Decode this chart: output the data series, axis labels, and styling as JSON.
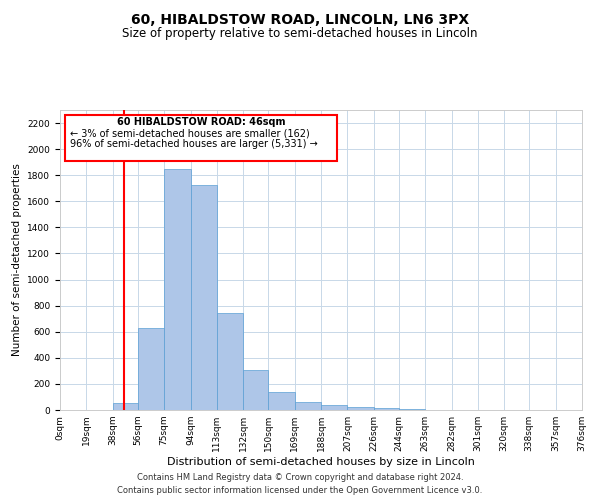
{
  "title": "60, HIBALDSTOW ROAD, LINCOLN, LN6 3PX",
  "subtitle": "Size of property relative to semi-detached houses in Lincoln",
  "xlabel": "Distribution of semi-detached houses by size in Lincoln",
  "ylabel": "Number of semi-detached properties",
  "footer_line1": "Contains HM Land Registry data © Crown copyright and database right 2024.",
  "footer_line2": "Contains public sector information licensed under the Open Government Licence v3.0.",
  "annotation_line1": "60 HIBALDSTOW ROAD: 46sqm",
  "annotation_line2": "← 3% of semi-detached houses are smaller (162)",
  "annotation_line3": "96% of semi-detached houses are larger (5,331) →",
  "property_size": 46,
  "bar_left_edges": [
    0,
    19,
    38,
    56,
    75,
    94,
    113,
    132,
    150,
    169,
    188,
    207,
    226,
    244,
    263,
    282,
    301,
    320,
    338,
    357
  ],
  "bar_widths": [
    19,
    19,
    18,
    19,
    19,
    19,
    19,
    18,
    19,
    19,
    19,
    19,
    18,
    19,
    19,
    19,
    19,
    18,
    19,
    19
  ],
  "bar_heights": [
    0,
    2,
    50,
    625,
    1850,
    1725,
    740,
    305,
    135,
    60,
    35,
    20,
    15,
    5,
    0,
    0,
    0,
    0,
    0,
    0
  ],
  "bar_color": "#aec6e8",
  "bar_edge_color": "#5a9fd4",
  "red_line_x": 46,
  "ylim": [
    0,
    2300
  ],
  "yticks": [
    0,
    200,
    400,
    600,
    800,
    1000,
    1200,
    1400,
    1600,
    1800,
    2000,
    2200
  ],
  "xtick_labels": [
    "0sqm",
    "19sqm",
    "38sqm",
    "56sqm",
    "75sqm",
    "94sqm",
    "113sqm",
    "132sqm",
    "150sqm",
    "169sqm",
    "188sqm",
    "207sqm",
    "226sqm",
    "244sqm",
    "263sqm",
    "282sqm",
    "301sqm",
    "320sqm",
    "338sqm",
    "357sqm",
    "376sqm"
  ],
  "xtick_positions": [
    0,
    19,
    38,
    56,
    75,
    94,
    113,
    132,
    150,
    169,
    188,
    207,
    226,
    244,
    263,
    282,
    301,
    320,
    338,
    357,
    376
  ],
  "grid_color": "#c8d8e8",
  "background_color": "#ffffff",
  "title_fontsize": 10,
  "subtitle_fontsize": 8.5,
  "ylabel_fontsize": 7.5,
  "tick_fontsize": 6.5,
  "annotation_fontsize": 7,
  "footer_fontsize": 6,
  "xlabel_fontsize": 8
}
